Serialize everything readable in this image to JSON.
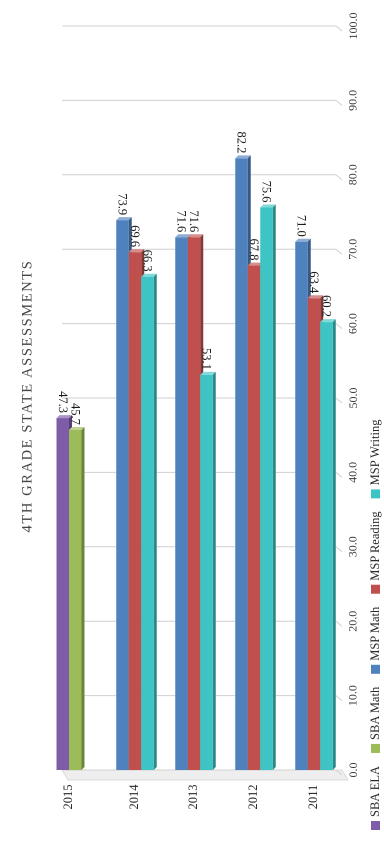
{
  "chart_data": {
    "type": "bar",
    "title": "4TH GRADE STATE ASSESSMENTS",
    "categories": [
      "2015",
      "2014",
      "2013",
      "2012",
      "2011"
    ],
    "value_axis": {
      "min": 0,
      "max": 100,
      "step": 10,
      "tick_labels": [
        "0.0",
        "10.0",
        "20.0",
        "30.0",
        "40.0",
        "50.0",
        "60.0",
        "70.0",
        "80.0",
        "90.0",
        "100.0"
      ]
    },
    "grid": true,
    "legend_position": "bottom",
    "series": [
      {
        "name": "SBA ELA",
        "color": "#7e5ca8",
        "values": [
          47.3,
          null,
          null,
          null,
          null
        ],
        "labels": [
          "47.3",
          "",
          "",
          "",
          ""
        ]
      },
      {
        "name": "SBA Math",
        "color": "#9cbb59",
        "values": [
          45.7,
          null,
          null,
          null,
          null
        ],
        "labels": [
          "45.7",
          "",
          "",
          "",
          ""
        ]
      },
      {
        "name": "MSP Math",
        "color": "#4f81bd",
        "values": [
          null,
          73.9,
          71.6,
          82.2,
          71.0
        ],
        "labels": [
          "",
          "73.9",
          "71.6",
          "82.2",
          "71.0"
        ]
      },
      {
        "name": "MSP Reading",
        "color": "#c0504d",
        "values": [
          null,
          69.6,
          71.6,
          67.8,
          63.4
        ],
        "labels": [
          "",
          "69.6",
          "71.6",
          "67.8",
          "63.4"
        ]
      },
      {
        "name": "MSP Writing",
        "color": "#3ec4c4",
        "values": [
          null,
          66.3,
          53.1,
          75.6,
          60.2
        ],
        "labels": [
          "",
          "66.3",
          "53.1",
          "75.6",
          "60.2"
        ]
      }
    ],
    "legend_order": [
      "SBA ELA",
      "SBA Math",
      "MSP Math",
      "MSP Reading",
      "MSP Writing"
    ]
  }
}
